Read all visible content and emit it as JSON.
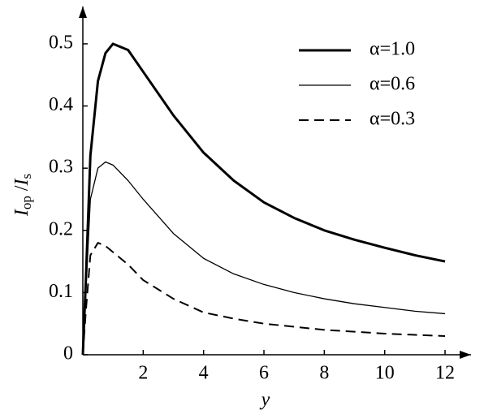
{
  "chart_data": {
    "type": "line",
    "ylabel": [
      "I",
      "op",
      " /",
      "I",
      "s"
    ],
    "xlabel": "y",
    "x": [
      0,
      0.1,
      0.25,
      0.5,
      0.75,
      1,
      1.5,
      2,
      3,
      4,
      5,
      6,
      7,
      8,
      9,
      10,
      11,
      12
    ],
    "series": [
      {
        "name": "α=1.0",
        "color": "#000000",
        "line_width": 3,
        "dash": "none",
        "values": [
          0,
          0.12,
          0.32,
          0.44,
          0.485,
          0.5,
          0.49,
          0.455,
          0.385,
          0.325,
          0.28,
          0.245,
          0.22,
          0.2,
          0.185,
          0.172,
          0.16,
          0.15
        ]
      },
      {
        "name": "α=0.6",
        "color": "#000000",
        "line_width": 1.3,
        "dash": "none",
        "values": [
          0,
          0.1,
          0.25,
          0.3,
          0.31,
          0.305,
          0.28,
          0.25,
          0.195,
          0.155,
          0.13,
          0.113,
          0.1,
          0.09,
          0.082,
          0.076,
          0.07,
          0.066
        ]
      },
      {
        "name": "α=0.3",
        "color": "#000000",
        "line_width": 2,
        "dash": "12 7",
        "values": [
          0,
          0.07,
          0.16,
          0.18,
          0.175,
          0.165,
          0.145,
          0.12,
          0.09,
          0.068,
          0.058,
          0.05,
          0.045,
          0.04,
          0.037,
          0.034,
          0.032,
          0.03
        ]
      }
    ],
    "xlim": [
      0,
      12.86
    ],
    "ylim": [
      0,
      0.56
    ],
    "xticks": [
      2,
      4,
      6,
      8,
      10,
      12
    ],
    "yticks": [
      0,
      0.1,
      0.2,
      0.3,
      0.4,
      0.5
    ],
    "legend": "top-right"
  }
}
